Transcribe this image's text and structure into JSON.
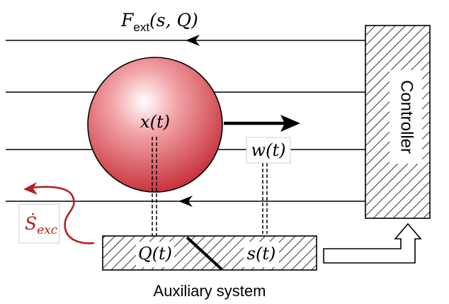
{
  "labels": {
    "force": {
      "main": "F",
      "sub": "ext",
      "args": "(s, Q)"
    },
    "position": "x(t)",
    "noise": "w(t)",
    "entropy": {
      "main": "Ṡ",
      "sub": "exc"
    },
    "aux_Q": "Q(t)",
    "aux_s": "s(t)",
    "controller": "Controller",
    "auxiliary": "Auxiliary system"
  },
  "colors": {
    "entropy": "#b22222",
    "sphere_center": "#ffffff",
    "sphere_edge": "#c8323c",
    "line": "#000000"
  }
}
